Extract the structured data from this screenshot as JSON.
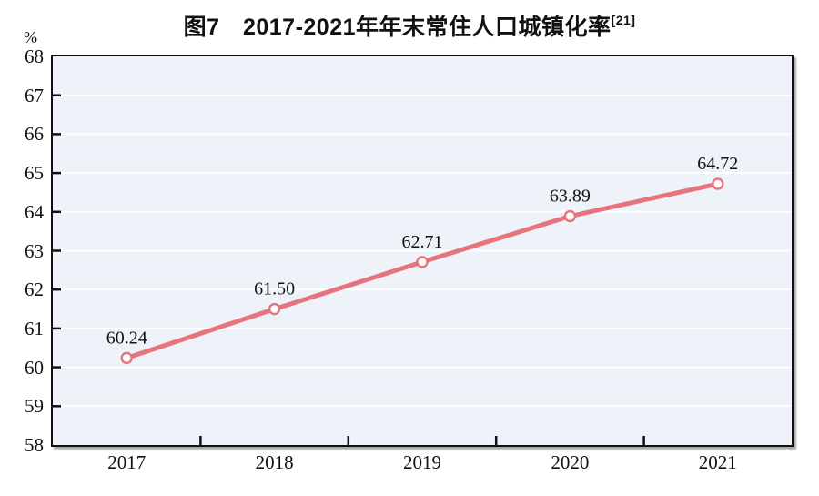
{
  "figure": {
    "title": "图7　2017-2021年年末常住人口城镇化率",
    "title_superscript": "[21]",
    "unit_label": "%"
  },
  "chart_data": {
    "type": "line",
    "title": "图7 2017-2021年年末常住人口城镇化率[21]",
    "categories": [
      "2017",
      "2018",
      "2019",
      "2020",
      "2021"
    ],
    "values": [
      60.24,
      61.5,
      62.71,
      63.89,
      64.72
    ],
    "point_labels": [
      "60.24",
      "61.50",
      "62.71",
      "63.89",
      "64.72"
    ],
    "xlabel": "",
    "ylabel": "%",
    "ylim": [
      58,
      68
    ],
    "ytick_step": 1,
    "grid": true,
    "legend": "none",
    "colors": {
      "line": "#e7737e",
      "marker_fill": "#ffffff",
      "marker_stroke": "#e7737e",
      "plot_background": "#edf3f8",
      "gridline": "#ffffff",
      "axis": "#111111",
      "text": "#111111"
    }
  }
}
